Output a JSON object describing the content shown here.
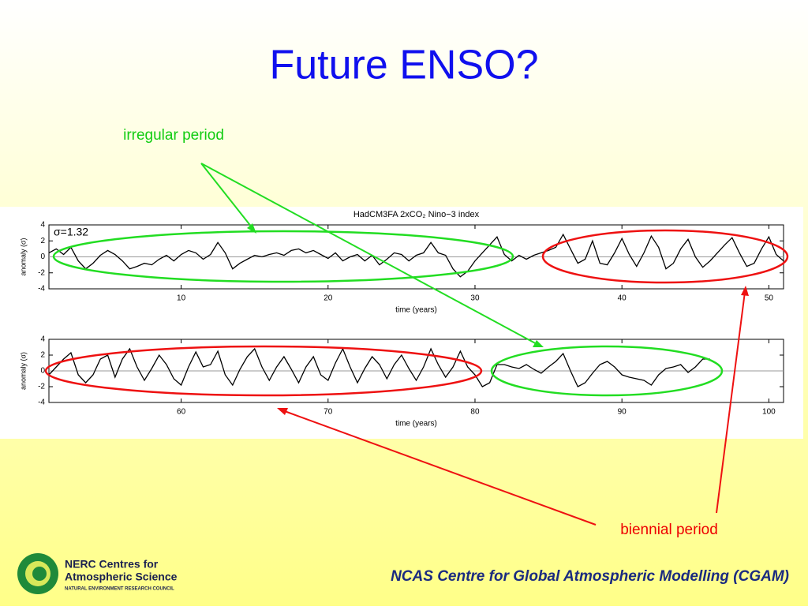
{
  "title": "Future ENSO?",
  "annotations": {
    "irregular": "irregular period",
    "biennial": "biennial period"
  },
  "logo": {
    "line1": "NERC Centres for",
    "line2": "Atmospheric Science",
    "line3": "NATURAL ENVIRONMENT RESEARCH COUNCIL"
  },
  "footer": "NCAS Centre for Global Atmospheric Modelling (CGAM)",
  "chart_data": [
    {
      "type": "line",
      "title": "HadCM3FA 2xCO₂ Nino−3 index",
      "annotation": "σ=1.32",
      "xlabel": "time (years)",
      "ylabel": "anomaly (σ)",
      "color": "#000000",
      "reference_line": 0,
      "xlim": [
        1,
        51
      ],
      "ylim": [
        -4,
        4
      ],
      "xticks": [
        10,
        20,
        30,
        40,
        50
      ],
      "yticks": [
        -4,
        -2,
        0,
        2,
        4
      ],
      "x": [
        1,
        1.5,
        2,
        2.5,
        3,
        3.5,
        4,
        4.5,
        5,
        5.5,
        6,
        6.5,
        7,
        7.5,
        8,
        8.5,
        9,
        9.5,
        10,
        10.5,
        11,
        11.5,
        12,
        12.5,
        13,
        13.5,
        14,
        14.5,
        15,
        15.5,
        16,
        16.5,
        17,
        17.5,
        18,
        18.5,
        19,
        19.5,
        20,
        20.5,
        21,
        21.5,
        22,
        22.5,
        23,
        23.5,
        24,
        24.5,
        25,
        25.5,
        26,
        26.5,
        27,
        27.5,
        28,
        28.5,
        29,
        29.5,
        30,
        30.5,
        31,
        31.5,
        32,
        32.5,
        33,
        33.5,
        34,
        34.5,
        35,
        35.5,
        36,
        36.5,
        37,
        37.5,
        38,
        38.5,
        39,
        39.5,
        40,
        40.5,
        41,
        41.5,
        42,
        42.5,
        43,
        43.5,
        44,
        44.5,
        45,
        45.5,
        46,
        46.5,
        47,
        47.5,
        48,
        48.5,
        49,
        49.5,
        50,
        50.5,
        51
      ],
      "values": [
        0.5,
        1,
        0.3,
        1.2,
        -0.5,
        -1.5,
        -0.8,
        0.2,
        0.8,
        0.3,
        -0.5,
        -1.5,
        -1.2,
        -0.8,
        -1,
        -0.3,
        0.2,
        -0.5,
        0.3,
        0.8,
        0.5,
        -0.3,
        0.3,
        1.8,
        0.5,
        -1.5,
        -0.8,
        -0.3,
        0.2,
        0,
        0.3,
        0.5,
        0.2,
        0.8,
        1,
        0.5,
        0.8,
        0.3,
        -0.2,
        0.5,
        -0.5,
        0,
        0.3,
        -0.5,
        0.2,
        -1,
        -0.3,
        0.5,
        0.3,
        -0.5,
        0.2,
        0.5,
        1.8,
        0.5,
        0.2,
        -1.5,
        -2.5,
        -1.8,
        -0.5,
        0.5,
        1.5,
        2.5,
        0.3,
        -0.5,
        0.2,
        -0.3,
        0.2,
        0.5,
        0.8,
        1.2,
        2.8,
        1,
        -0.8,
        -0.3,
        2,
        -0.8,
        -1,
        0.5,
        2.3,
        0.3,
        -1.2,
        0.5,
        2.6,
        1.2,
        -1.5,
        -0.8,
        1,
        2.2,
        0,
        -1.3,
        -0.5,
        0.5,
        1.5,
        2.4,
        0.5,
        -1.2,
        -0.8,
        1,
        2.5,
        0.3,
        -0.5
      ]
    },
    {
      "type": "line",
      "xlabel": "time (years)",
      "ylabel": "anomaly (σ)",
      "color": "#000000",
      "reference_line": 0,
      "xlim": [
        51,
        101
      ],
      "ylim": [
        -4,
        4
      ],
      "xticks": [
        60,
        70,
        80,
        90,
        100
      ],
      "yticks": [
        -4,
        -2,
        0,
        2,
        4
      ],
      "x": [
        51,
        51.5,
        52,
        52.5,
        53,
        53.5,
        54,
        54.5,
        55,
        55.5,
        56,
        56.5,
        57,
        57.5,
        58,
        58.5,
        59,
        59.5,
        60,
        60.5,
        61,
        61.5,
        62,
        62.5,
        63,
        63.5,
        64,
        64.5,
        65,
        65.5,
        66,
        66.5,
        67,
        67.5,
        68,
        68.5,
        69,
        69.5,
        70,
        70.5,
        71,
        71.5,
        72,
        72.5,
        73,
        73.5,
        74,
        74.5,
        75,
        75.5,
        76,
        76.5,
        77,
        77.5,
        78,
        78.5,
        79,
        79.5,
        80,
        80.5,
        81,
        81.5,
        82,
        82.5,
        83,
        83.5,
        84,
        84.5,
        85,
        85.5,
        86,
        86.5,
        87,
        87.5,
        88,
        88.5,
        89,
        89.5,
        90,
        90.5,
        91,
        91.5,
        92,
        92.5,
        93,
        93.5,
        94,
        94.5,
        95,
        95.5,
        96
      ],
      "values": [
        -0.5,
        0.5,
        1.5,
        2.3,
        -0.5,
        -1.5,
        -0.5,
        1.5,
        2,
        -0.8,
        1.5,
        2.8,
        0.5,
        -1.2,
        0.3,
        2,
        0.8,
        -1,
        -1.8,
        0.5,
        2.4,
        0.5,
        0.8,
        2.5,
        -0.5,
        -1.8,
        0.2,
        1.8,
        2.8,
        0.5,
        -1.2,
        0.5,
        1.8,
        0.2,
        -1.5,
        0.5,
        1.8,
        -0.5,
        -1.2,
        1,
        2.8,
        0.5,
        -1.5,
        0.3,
        1.8,
        0.8,
        -1,
        0.8,
        2,
        0.3,
        -1.2,
        0.5,
        2.8,
        0.8,
        -0.8,
        0.5,
        2.5,
        0.5,
        -0.5,
        -2,
        -1.5,
        0.8,
        0.8,
        0.5,
        0.3,
        0.8,
        0.2,
        -0.3,
        0.5,
        1.2,
        2.2,
        0,
        -2,
        -1.5,
        -0.3,
        0.8,
        1.2,
        0.5,
        -0.5,
        -0.8,
        -1,
        -1.2,
        -1.8,
        -0.5,
        0.3,
        0.5,
        0.8,
        -0.2,
        0.5,
        1.5,
        1.5
      ]
    }
  ]
}
